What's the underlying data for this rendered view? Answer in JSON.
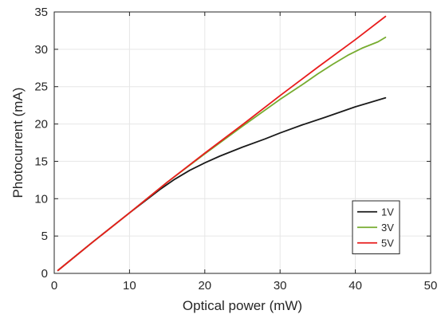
{
  "chart_data": {
    "type": "line",
    "title": "",
    "xlabel": "Optical power (mW)",
    "ylabel": "Photocurrent (mA)",
    "xlim": [
      0,
      50
    ],
    "ylim": [
      0,
      35
    ],
    "xticks": [
      "0",
      "10",
      "20",
      "30",
      "40",
      "50"
    ],
    "yticks": [
      "0",
      "5",
      "10",
      "15",
      "20",
      "25",
      "30",
      "35"
    ],
    "grid": true,
    "legend_position": "bottom-right",
    "series": [
      {
        "name": "1V",
        "color": "#1a1a1a",
        "x": [
          0.5,
          5,
          10,
          14,
          16,
          18,
          20,
          22,
          25,
          28,
          30,
          33,
          36,
          40,
          44
        ],
        "y": [
          0.4,
          4.1,
          8.1,
          11.2,
          12.6,
          13.8,
          14.8,
          15.7,
          16.9,
          18.0,
          18.8,
          19.9,
          20.9,
          22.3,
          23.5
        ]
      },
      {
        "name": "3V",
        "color": "#77ac30",
        "x": [
          0.5,
          5,
          10,
          15,
          20,
          25,
          30,
          33,
          35,
          37,
          39,
          41,
          43,
          44
        ],
        "y": [
          0.4,
          4.1,
          8.1,
          12.2,
          16.0,
          19.7,
          23.3,
          25.3,
          26.7,
          28.0,
          29.2,
          30.2,
          31.0,
          31.6
        ]
      },
      {
        "name": "5V",
        "color": "#e81c1c",
        "x": [
          0.5,
          5,
          10,
          15,
          20,
          25,
          30,
          35,
          40,
          44
        ],
        "y": [
          0.4,
          4.1,
          8.1,
          12.2,
          16.1,
          19.9,
          23.8,
          27.6,
          31.3,
          34.4
        ]
      }
    ]
  }
}
